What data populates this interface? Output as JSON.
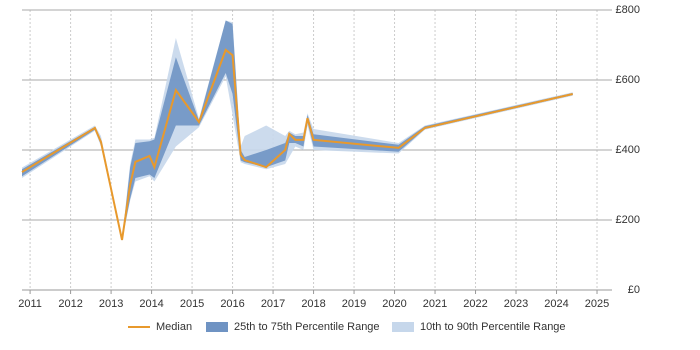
{
  "chart_data": {
    "type": "line",
    "x": [
      2010.8,
      2012.6,
      2012.75,
      2013.27,
      2013.47,
      2013.6,
      2013.95,
      2014.07,
      2014.6,
      2015.17,
      2015.83,
      2016.0,
      2016.2,
      2016.3,
      2016.83,
      2017.3,
      2017.4,
      2017.55,
      2017.75,
      2017.85,
      2018.0,
      2020.1,
      2020.75,
      2024.4
    ],
    "series": [
      {
        "name": "Median",
        "color": "#e8992c",
        "values": [
          337,
          463,
          423,
          143,
          300,
          366,
          383,
          351,
          571,
          480,
          686,
          671,
          386,
          371,
          351,
          400,
          446,
          429,
          429,
          491,
          429,
          406,
          463,
          560
        ]
      }
    ],
    "bands": [
      {
        "name": "10th to 90th Percentile Range",
        "color": "#c6d7eb",
        "low": [
          320,
          455,
          410,
          140,
          255,
          310,
          325,
          310,
          410,
          465,
          610,
          500,
          365,
          360,
          345,
          360,
          380,
          410,
          400,
          470,
          400,
          390,
          458,
          555
        ],
        "high": [
          350,
          470,
          440,
          145,
          360,
          430,
          430,
          435,
          720,
          490,
          770,
          765,
          410,
          440,
          470,
          440,
          455,
          445,
          450,
          505,
          460,
          420,
          470,
          565
        ]
      },
      {
        "name": "25th to 75th Percentile Range",
        "color": "#6f93c3",
        "low": [
          325,
          458,
          415,
          143,
          260,
          320,
          330,
          320,
          470,
          470,
          620,
          560,
          370,
          365,
          351,
          370,
          420,
          420,
          410,
          480,
          410,
          395,
          460,
          557
        ],
        "high": [
          345,
          466,
          430,
          143,
          350,
          420,
          425,
          430,
          665,
          485,
          770,
          760,
          400,
          380,
          400,
          420,
          450,
          440,
          440,
          500,
          445,
          415,
          468,
          563
        ]
      }
    ],
    "xlim": [
      2010.8,
      2025.37
    ],
    "xticks": [
      2011,
      2012,
      2013,
      2014,
      2015,
      2016,
      2017,
      2018,
      2019,
      2020,
      2021,
      2022,
      2023,
      2024,
      2025
    ],
    "ylim": [
      0,
      800
    ],
    "yticks": [
      {
        "value": 0,
        "label": "£0"
      },
      {
        "value": 200,
        "label": "£200"
      },
      {
        "value": 400,
        "label": "£400"
      },
      {
        "value": 600,
        "label": "£600"
      },
      {
        "value": 800,
        "label": "£800"
      }
    ],
    "grid": true
  }
}
